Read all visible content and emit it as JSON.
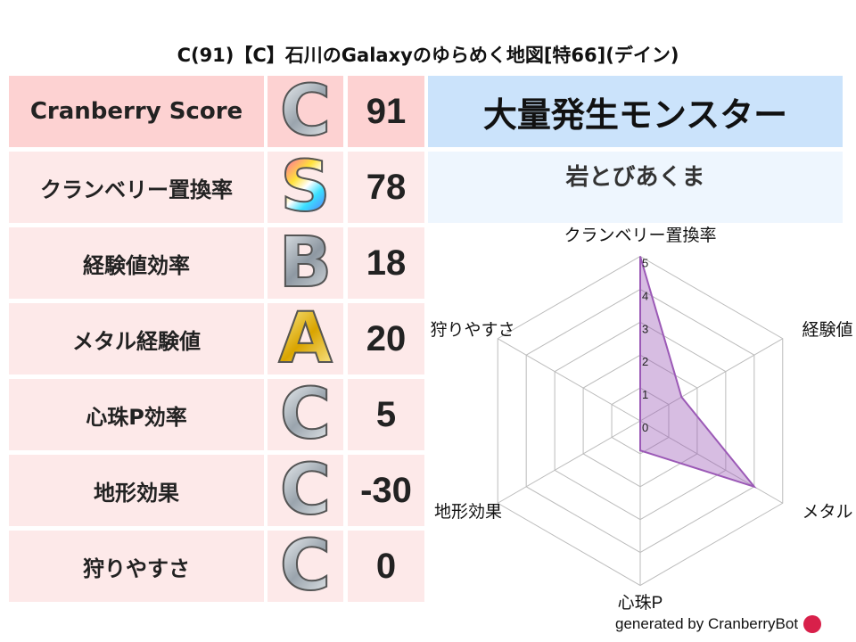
{
  "title": "C(91)【C】石川のGalaxyのゆらめく地図[特66](デイン)",
  "rows": [
    {
      "label": "Cranberry Score",
      "grade": "C",
      "value": "91"
    },
    {
      "label": "クランベリー置換率",
      "grade": "S",
      "value": "78"
    },
    {
      "label": "経験値効率",
      "grade": "B",
      "value": "18"
    },
    {
      "label": "メタル経験値",
      "grade": "A",
      "value": "20"
    },
    {
      "label": "心珠P効率",
      "grade": "C",
      "value": "5"
    },
    {
      "label": "地形効果",
      "grade": "C",
      "value": "-30"
    },
    {
      "label": "狩りやすさ",
      "grade": "C",
      "value": "0"
    }
  ],
  "monster": {
    "header": "大量発生モンスター",
    "name": "岩とびあくま"
  },
  "chart_data": {
    "type": "radar",
    "axes": [
      "クランベリー置換率",
      "経験値",
      "メタル",
      "心珠P",
      "地形効果",
      "狩りやすさ"
    ],
    "values": [
      5,
      1.45,
      4,
      0.9,
      0,
      0
    ],
    "ticks": [
      "0",
      "1",
      "2",
      "3",
      "4",
      "5"
    ],
    "range": [
      0,
      5
    ],
    "color": "#9b59b6"
  },
  "footer": "generated by CranberryBot"
}
